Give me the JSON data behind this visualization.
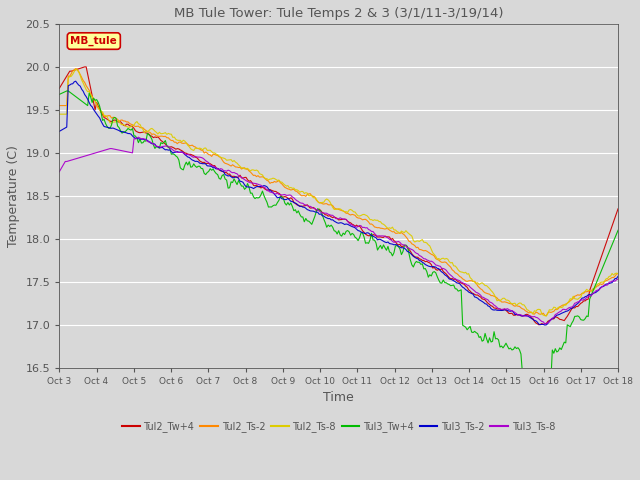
{
  "title": "MB Tule Tower: Tule Temps 2 & 3 (3/1/11-3/19/14)",
  "xlabel": "Time",
  "ylabel": "Temperature (C)",
  "ylim": [
    16.5,
    20.5
  ],
  "xlim": [
    0,
    374
  ],
  "xtick_labels": [
    "Oct 3",
    "Oct 4",
    "Oct 5",
    "Oct 6",
    "Oct 7",
    "Oct 8",
    "Oct 9",
    "Oct 10",
    "Oct 11",
    "Oct 12",
    "Oct 13",
    "Oct 14",
    "Oct 15",
    "Oct 16",
    "Oct 17",
    "Oct 18"
  ],
  "background_color": "#d8d8d8",
  "plot_bg": "#d8d8d8",
  "series": [
    {
      "label": "Tul2_Tw+4",
      "color": "#cc0000",
      "lw": 0.8
    },
    {
      "label": "Tul2_Ts-2",
      "color": "#ff8800",
      "lw": 0.8
    },
    {
      "label": "Tul2_Ts-8",
      "color": "#ddcc00",
      "lw": 0.8
    },
    {
      "label": "Tul3_Tw+4",
      "color": "#00bb00",
      "lw": 0.8
    },
    {
      "label": "Tul3_Ts-2",
      "color": "#0000cc",
      "lw": 0.8
    },
    {
      "label": "Tul3_Ts-8",
      "color": "#aa00cc",
      "lw": 0.8
    }
  ],
  "legend_box": {
    "label": "MB_tule",
    "facecolor": "#ffff99",
    "edgecolor": "#cc0000",
    "textcolor": "#cc0000"
  },
  "title_color": "#555555",
  "axis_color": "#555555",
  "grid_color": "#ffffff",
  "n_points": 375
}
